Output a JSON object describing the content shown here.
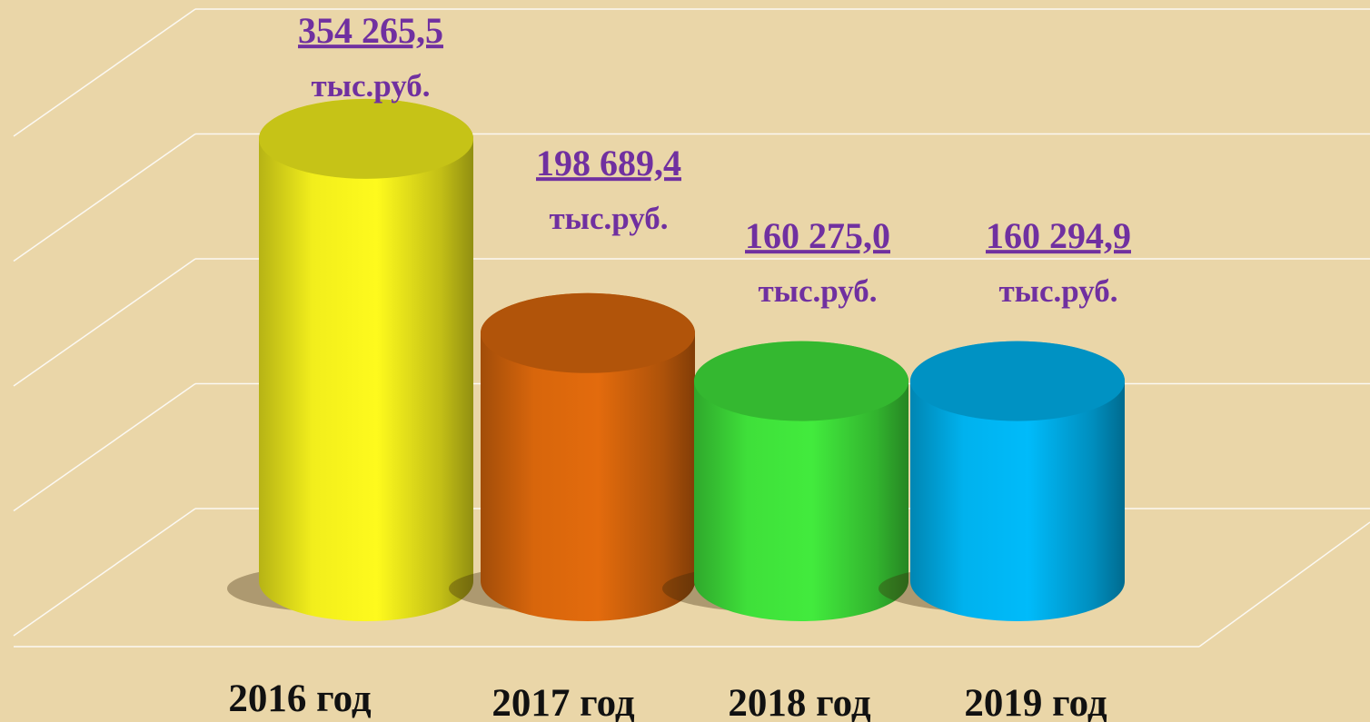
{
  "chart_data": {
    "type": "cylinder-bar",
    "categories": [
      "2016 год",
      "2017 год",
      "2018 год",
      "2019 год"
    ],
    "values": [
      354265.5,
      198689.4,
      160275.0,
      160294.9
    ],
    "value_labels": [
      "354 265,5",
      "198 689,4",
      "160 275,0",
      "160 294,9"
    ],
    "value_unit": "тыс.руб.",
    "colors": [
      "#f2ee1c",
      "#d8660c",
      "#3fe03a",
      "#00b2ee"
    ],
    "ylim": [
      0,
      400000
    ],
    "yticks": [
      0,
      100000,
      200000,
      300000,
      400000
    ],
    "grid": true
  }
}
